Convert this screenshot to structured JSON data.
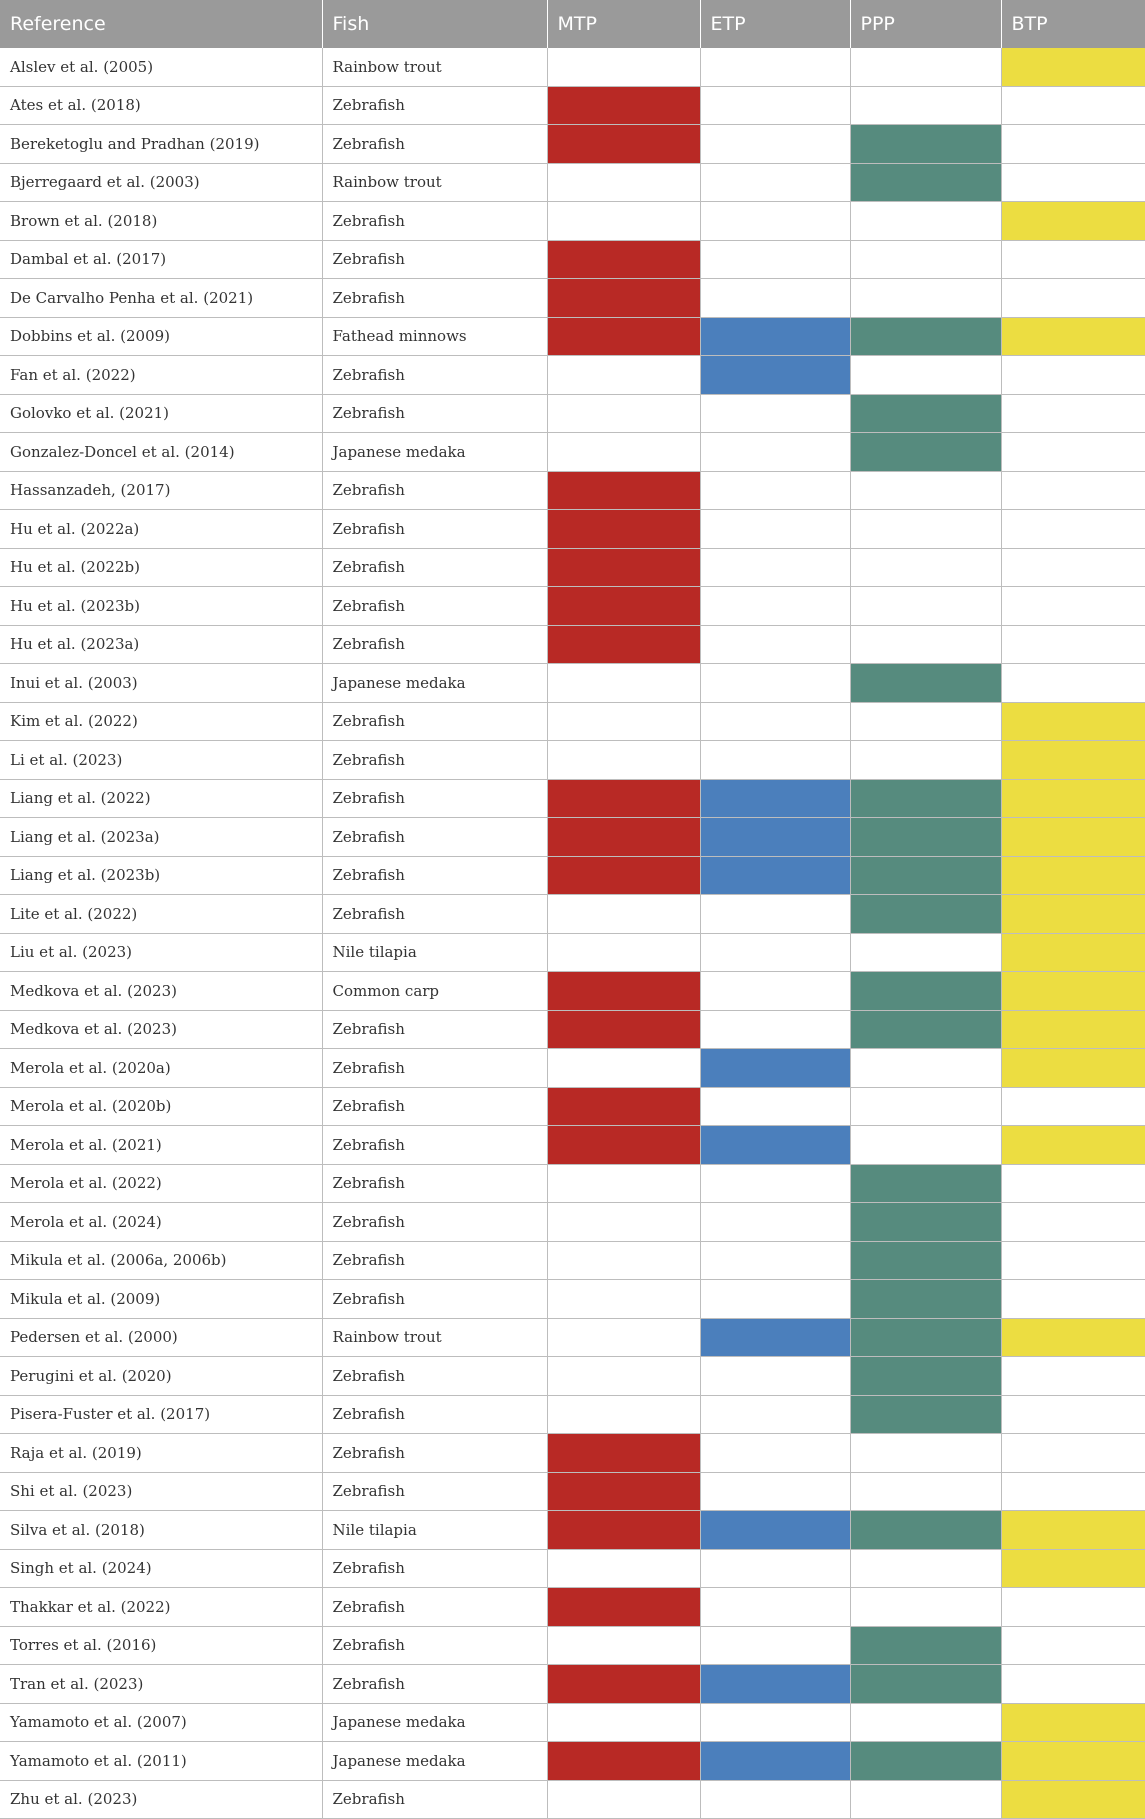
{
  "headers": [
    "Reference",
    "Fish",
    "MTP",
    "ETP",
    "PPP",
    "BTP"
  ],
  "colors": {
    "MTP": "#b82925",
    "ETP": "#4b7fbc",
    "PPP": "#568b7e",
    "BTP": "#ecdd41"
  },
  "rows": [
    {
      "reference": "Alslev et al. (2005)",
      "fish": "Rainbow trout",
      "mtp": false,
      "etp": false,
      "ppp": false,
      "btp": true
    },
    {
      "reference": "Ates et al. (2018)",
      "fish": "Zebrafish",
      "mtp": true,
      "etp": false,
      "ppp": false,
      "btp": false
    },
    {
      "reference": "Bereketoglu and Pradhan (2019)",
      "fish": "Zebrafish",
      "mtp": true,
      "etp": false,
      "ppp": true,
      "btp": false
    },
    {
      "reference": "Bjerregaard et al. (2003)",
      "fish": "Rainbow trout",
      "mtp": false,
      "etp": false,
      "ppp": true,
      "btp": false
    },
    {
      "reference": "Brown et al. (2018)",
      "fish": "Zebrafish",
      "mtp": false,
      "etp": false,
      "ppp": false,
      "btp": true
    },
    {
      "reference": "Dambal et al. (2017)",
      "fish": "Zebrafish",
      "mtp": true,
      "etp": false,
      "ppp": false,
      "btp": false
    },
    {
      "reference": "De Carvalho Penha et al. (2021)",
      "fish": "Zebrafish",
      "mtp": true,
      "etp": false,
      "ppp": false,
      "btp": false
    },
    {
      "reference": "Dobbins et al. (2009)",
      "fish": "Fathead minnows",
      "mtp": true,
      "etp": true,
      "ppp": true,
      "btp": true
    },
    {
      "reference": "Fan et al. (2022)",
      "fish": "Zebrafish",
      "mtp": false,
      "etp": true,
      "ppp": false,
      "btp": false
    },
    {
      "reference": "Golovko et al. (2021)",
      "fish": "Zebrafish",
      "mtp": false,
      "etp": false,
      "ppp": true,
      "btp": false
    },
    {
      "reference": "Gonzalez-Doncel et al. (2014)",
      "fish": "Japanese medaka",
      "mtp": false,
      "etp": false,
      "ppp": true,
      "btp": false
    },
    {
      "reference": "Hassanzadeh, (2017)",
      "fish": "Zebrafish",
      "mtp": true,
      "etp": false,
      "ppp": false,
      "btp": false
    },
    {
      "reference": "Hu et al. (2022a)",
      "fish": "Zebrafish",
      "mtp": true,
      "etp": false,
      "ppp": false,
      "btp": false
    },
    {
      "reference": "Hu et al. (2022b)",
      "fish": "Zebrafish",
      "mtp": true,
      "etp": false,
      "ppp": false,
      "btp": false
    },
    {
      "reference": "Hu et al. (2023b)",
      "fish": "Zebrafish",
      "mtp": true,
      "etp": false,
      "ppp": false,
      "btp": false
    },
    {
      "reference": "Hu et al. (2023a)",
      "fish": "Zebrafish",
      "mtp": true,
      "etp": false,
      "ppp": false,
      "btp": false
    },
    {
      "reference": "Inui et al. (2003)",
      "fish": "Japanese medaka",
      "mtp": false,
      "etp": false,
      "ppp": true,
      "btp": false
    },
    {
      "reference": "Kim et al. (2022)",
      "fish": "Zebrafish",
      "mtp": false,
      "etp": false,
      "ppp": false,
      "btp": true
    },
    {
      "reference": "Li et al. (2023)",
      "fish": "Zebrafish",
      "mtp": false,
      "etp": false,
      "ppp": false,
      "btp": true
    },
    {
      "reference": "Liang et al. (2022)",
      "fish": "Zebrafish",
      "mtp": true,
      "etp": true,
      "ppp": true,
      "btp": true
    },
    {
      "reference": "Liang et al. (2023a)",
      "fish": "Zebrafish",
      "mtp": true,
      "etp": true,
      "ppp": true,
      "btp": true
    },
    {
      "reference": "Liang et al. (2023b)",
      "fish": "Zebrafish",
      "mtp": true,
      "etp": true,
      "ppp": true,
      "btp": true
    },
    {
      "reference": "Lite et al. (2022)",
      "fish": "Zebrafish",
      "mtp": false,
      "etp": false,
      "ppp": true,
      "btp": true
    },
    {
      "reference": "Liu et al. (2023)",
      "fish": "Nile tilapia",
      "mtp": false,
      "etp": false,
      "ppp": false,
      "btp": true
    },
    {
      "reference": "Medkova et al. (2023)",
      "fish": "Common carp",
      "mtp": true,
      "etp": false,
      "ppp": true,
      "btp": true
    },
    {
      "reference": "Medkova et al. (2023)",
      "fish": "Zebrafish",
      "mtp": true,
      "etp": false,
      "ppp": true,
      "btp": true
    },
    {
      "reference": "Merola et al. (2020a)",
      "fish": "Zebrafish",
      "mtp": false,
      "etp": true,
      "ppp": false,
      "btp": true
    },
    {
      "reference": "Merola et al. (2020b)",
      "fish": "Zebrafish",
      "mtp": true,
      "etp": false,
      "ppp": false,
      "btp": false
    },
    {
      "reference": "Merola et al. (2021)",
      "fish": "Zebrafish",
      "mtp": true,
      "etp": true,
      "ppp": false,
      "btp": true
    },
    {
      "reference": "Merola et al. (2022)",
      "fish": "Zebrafish",
      "mtp": false,
      "etp": false,
      "ppp": true,
      "btp": false
    },
    {
      "reference": "Merola et al. (2024)",
      "fish": "Zebrafish",
      "mtp": false,
      "etp": false,
      "ppp": true,
      "btp": false
    },
    {
      "reference": "Mikula et al. (2006a, 2006b)",
      "fish": "Zebrafish",
      "mtp": false,
      "etp": false,
      "ppp": true,
      "btp": false
    },
    {
      "reference": "Mikula et al. (2009)",
      "fish": "Zebrafish",
      "mtp": false,
      "etp": false,
      "ppp": true,
      "btp": false
    },
    {
      "reference": "Pedersen et al. (2000)",
      "fish": "Rainbow trout",
      "mtp": false,
      "etp": true,
      "ppp": true,
      "btp": true
    },
    {
      "reference": "Perugini et al. (2020)",
      "fish": "Zebrafish",
      "mtp": false,
      "etp": false,
      "ppp": true,
      "btp": false
    },
    {
      "reference": "Pisera-Fuster et al. (2017)",
      "fish": "Zebrafish",
      "mtp": false,
      "etp": false,
      "ppp": true,
      "btp": false
    },
    {
      "reference": "Raja et al. (2019)",
      "fish": "Zebrafish",
      "mtp": true,
      "etp": false,
      "ppp": false,
      "btp": false
    },
    {
      "reference": "Shi et al. (2023)",
      "fish": "Zebrafish",
      "mtp": true,
      "etp": false,
      "ppp": false,
      "btp": false
    },
    {
      "reference": "Silva et al. (2018)",
      "fish": "Nile tilapia",
      "mtp": true,
      "etp": true,
      "ppp": true,
      "btp": true
    },
    {
      "reference": "Singh et al. (2024)",
      "fish": "Zebrafish",
      "mtp": false,
      "etp": false,
      "ppp": false,
      "btp": true
    },
    {
      "reference": "Thakkar et al. (2022)",
      "fish": "Zebrafish",
      "mtp": true,
      "etp": false,
      "ppp": false,
      "btp": false
    },
    {
      "reference": "Torres et al. (2016)",
      "fish": "Zebrafish",
      "mtp": false,
      "etp": false,
      "ppp": true,
      "btp": false
    },
    {
      "reference": "Tran et al. (2023)",
      "fish": "Zebrafish",
      "mtp": true,
      "etp": true,
      "ppp": true,
      "btp": false
    },
    {
      "reference": "Yamamoto et al. (2007)",
      "fish": "Japanese medaka",
      "mtp": false,
      "etp": false,
      "ppp": false,
      "btp": true
    },
    {
      "reference": "Yamamoto et al. (2011)",
      "fish": "Japanese medaka",
      "mtp": true,
      "etp": true,
      "ppp": true,
      "btp": true
    },
    {
      "reference": "Zhu et al. (2023)",
      "fish": "Zebrafish",
      "mtp": false,
      "etp": false,
      "ppp": false,
      "btp": true
    }
  ]
}
